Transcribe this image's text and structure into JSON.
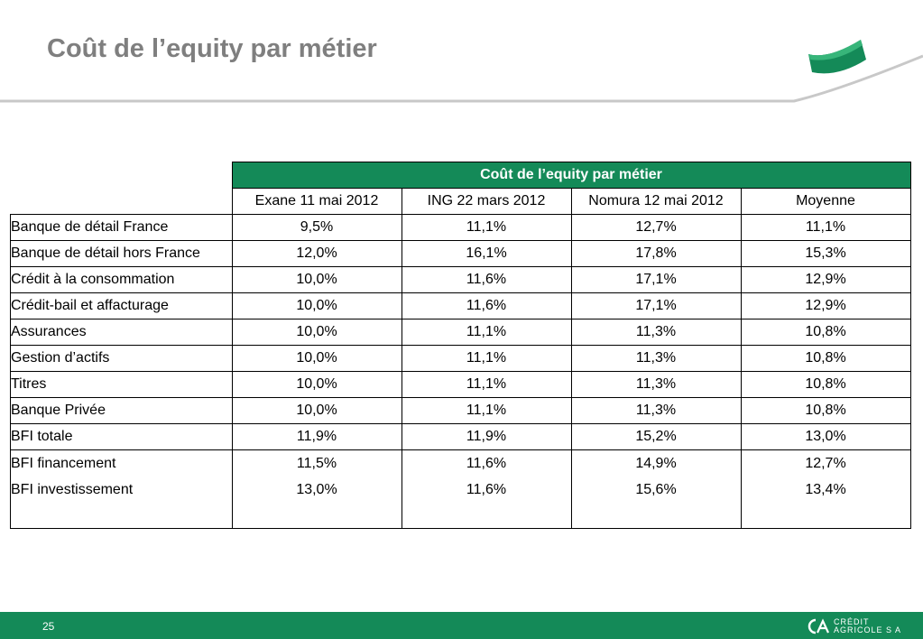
{
  "page": {
    "title": "Coût de l’equity par métier"
  },
  "table": {
    "group_header": "Coût de l’equity par métier",
    "columns": [
      "Exane 11 mai 2012",
      "ING 22 mars 2012",
      "Nomura 12 mai 2012",
      "Moyenne"
    ],
    "rows": [
      {
        "label": "Banque de détail France",
        "values": [
          "9,5%",
          "11,1%",
          "12,7%",
          "11,1%"
        ]
      },
      {
        "label": "Banque de détail hors France",
        "values": [
          "12,0%",
          "16,1%",
          "17,8%",
          "15,3%"
        ]
      },
      {
        "label": "Crédit à la consommation",
        "values": [
          "10,0%",
          "11,6%",
          "17,1%",
          "12,9%"
        ]
      },
      {
        "label": "Crédit-bail et affacturage",
        "values": [
          "10,0%",
          "11,6%",
          "17,1%",
          "12,9%"
        ]
      },
      {
        "label": "Assurances",
        "values": [
          "10,0%",
          "11,1%",
          "11,3%",
          "10,8%"
        ]
      },
      {
        "label": "Gestion d’actifs",
        "values": [
          "10,0%",
          "11,1%",
          "11,3%",
          "10,8%"
        ]
      },
      {
        "label": "Titres",
        "values": [
          "10,0%",
          "11,1%",
          "11,3%",
          "10,8%"
        ]
      },
      {
        "label": "Banque Privée",
        "values": [
          "10,0%",
          "11,1%",
          "11,3%",
          "10,8%"
        ]
      },
      {
        "label": "BFI totale",
        "values": [
          "11,9%",
          "11,9%",
          "15,2%",
          "13,0%"
        ]
      }
    ],
    "last_row": {
      "labels": [
        "BFI financement",
        "BFI investissement"
      ],
      "values": [
        [
          "11,5%",
          "13,0%"
        ],
        [
          "11,6%",
          "11,6%"
        ],
        [
          "14,9%",
          "15,6%"
        ],
        [
          "12,7%",
          "13,4%"
        ]
      ]
    }
  },
  "footer": {
    "page_number": "25",
    "brand_line1": "CRÉDIT",
    "brand_line2": "AGRICOLE S A",
    "brand_icon": "credit-agricole-logo-icon"
  },
  "colors": {
    "accent_green": "#148a58",
    "title_gray": "#7f7f7f"
  }
}
